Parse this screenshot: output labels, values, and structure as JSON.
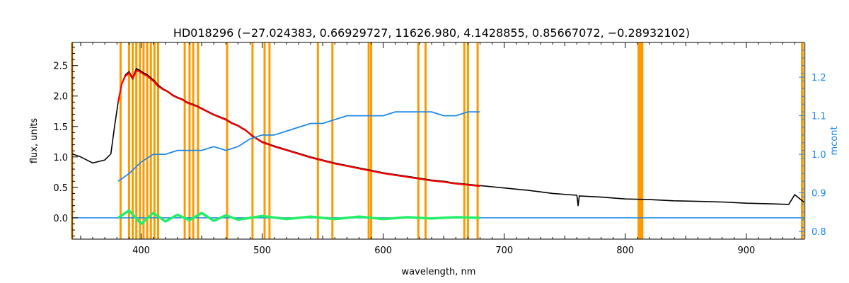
{
  "chart_data": {
    "type": "line",
    "title": "HD018296    (−27.024383, 0.66929727, 11626.980, 4.1428855, 0.85667072, −0.28932102)",
    "xlabel": "wavelength, nm",
    "ylabel": "flux, units",
    "y2label": "mcont",
    "xlim": [
      343,
      948
    ],
    "ylim": [
      -0.35,
      2.88
    ],
    "y2lim": [
      0.78,
      1.29
    ],
    "x_ticks": [
      400,
      500,
      600,
      700,
      800,
      900
    ],
    "y_ticks": [
      0.0,
      0.5,
      1.0,
      1.5,
      2.0,
      2.5
    ],
    "y2_ticks": [
      0.8,
      0.9,
      1.0,
      1.1,
      1.2
    ],
    "grid": false,
    "colors": {
      "observed": "#000000",
      "model": "#ff0000",
      "residual": "#22ee66",
      "continuum": "#1e88e5",
      "masks": "#ff9900"
    },
    "series": [
      {
        "key": "observed",
        "x": [
          343,
          350,
          360,
          370,
          375,
          378,
          381,
          384,
          387,
          390,
          393,
          396,
          399,
          402,
          405,
          408,
          411,
          414,
          418,
          422,
          426,
          430,
          434,
          438,
          442,
          446,
          450,
          455,
          460,
          465,
          470,
          475,
          480,
          484,
          486,
          489,
          492,
          496,
          500,
          510,
          520,
          530,
          540,
          550,
          560,
          570,
          580,
          590,
          600,
          610,
          620,
          630,
          640,
          650,
          656,
          660,
          670,
          680,
          690,
          700,
          720,
          740,
          760,
          761,
          762,
          780,
          800,
          820,
          840,
          860,
          880,
          900,
          920,
          935,
          940,
          945,
          948
        ],
        "y": [
          1.05,
          1.0,
          0.9,
          0.95,
          1.05,
          1.5,
          1.9,
          2.2,
          2.35,
          2.4,
          2.3,
          2.45,
          2.42,
          2.38,
          2.35,
          2.3,
          2.25,
          2.18,
          2.12,
          2.08,
          2.02,
          1.98,
          1.95,
          1.9,
          1.87,
          1.84,
          1.8,
          1.75,
          1.7,
          1.66,
          1.62,
          1.56,
          1.52,
          1.47,
          1.45,
          1.4,
          1.35,
          1.3,
          1.25,
          1.18,
          1.12,
          1.06,
          1.0,
          0.95,
          0.9,
          0.86,
          0.82,
          0.78,
          0.74,
          0.71,
          0.68,
          0.65,
          0.62,
          0.6,
          0.58,
          0.57,
          0.55,
          0.53,
          0.51,
          0.49,
          0.45,
          0.4,
          0.37,
          0.2,
          0.36,
          0.34,
          0.31,
          0.3,
          0.28,
          0.27,
          0.26,
          0.24,
          0.23,
          0.22,
          0.38,
          0.3,
          0.25
        ]
      },
      {
        "key": "model",
        "x": [
          381,
          384,
          387,
          390,
          393,
          396,
          399,
          402,
          405,
          408,
          411,
          414,
          418,
          422,
          426,
          430,
          434,
          438,
          442,
          446,
          450,
          455,
          460,
          465,
          470,
          475,
          480,
          484,
          486,
          489,
          492,
          496,
          500,
          510,
          520,
          530,
          540,
          550,
          560,
          570,
          580,
          590,
          600,
          610,
          620,
          630,
          640,
          650,
          656,
          660,
          670,
          680
        ],
        "y": [
          1.9,
          2.2,
          2.33,
          2.38,
          2.28,
          2.42,
          2.4,
          2.36,
          2.33,
          2.28,
          2.23,
          2.16,
          2.11,
          2.07,
          2.01,
          1.97,
          1.94,
          1.89,
          1.86,
          1.83,
          1.79,
          1.74,
          1.69,
          1.65,
          1.61,
          1.55,
          1.51,
          1.46,
          1.44,
          1.39,
          1.34,
          1.29,
          1.24,
          1.17,
          1.11,
          1.05,
          0.99,
          0.94,
          0.89,
          0.85,
          0.81,
          0.77,
          0.73,
          0.7,
          0.67,
          0.64,
          0.61,
          0.59,
          0.57,
          0.56,
          0.54,
          0.52
        ]
      },
      {
        "key": "continuum",
        "axis": "right",
        "x": [
          381,
          390,
          400,
          410,
          420,
          430,
          440,
          450,
          460,
          470,
          480,
          490,
          500,
          510,
          520,
          530,
          540,
          550,
          560,
          570,
          580,
          590,
          600,
          610,
          620,
          630,
          640,
          650,
          660,
          670,
          680
        ],
        "y": [
          0.93,
          0.95,
          0.98,
          1.0,
          1.0,
          1.01,
          1.01,
          1.01,
          1.02,
          1.01,
          1.02,
          1.04,
          1.05,
          1.05,
          1.06,
          1.07,
          1.08,
          1.08,
          1.09,
          1.1,
          1.1,
          1.1,
          1.1,
          1.11,
          1.11,
          1.11,
          1.11,
          1.1,
          1.1,
          1.11,
          1.11
        ]
      },
      {
        "key": "residual",
        "x": [
          381,
          390,
          400,
          410,
          420,
          430,
          440,
          450,
          460,
          470,
          480,
          500,
          520,
          540,
          560,
          580,
          600,
          620,
          640,
          660,
          680
        ],
        "y": [
          0.0,
          0.12,
          -0.1,
          0.08,
          -0.06,
          0.05,
          -0.04,
          0.08,
          -0.05,
          0.04,
          -0.03,
          0.03,
          -0.02,
          0.02,
          -0.02,
          0.02,
          -0.02,
          0.01,
          -0.01,
          0.01,
          0.0
        ]
      }
    ],
    "baseline": {
      "x1": 343,
      "x2": 948,
      "y": 0.0,
      "color": "#1e88e5"
    },
    "masks": [
      343,
      383,
      390,
      393,
      396,
      399,
      402,
      405,
      408,
      411,
      414,
      436,
      440,
      443,
      447,
      471,
      492,
      502,
      506,
      546,
      558,
      588,
      590,
      629,
      635,
      667,
      670,
      678,
      811,
      812,
      813,
      814,
      946,
      948
    ]
  }
}
